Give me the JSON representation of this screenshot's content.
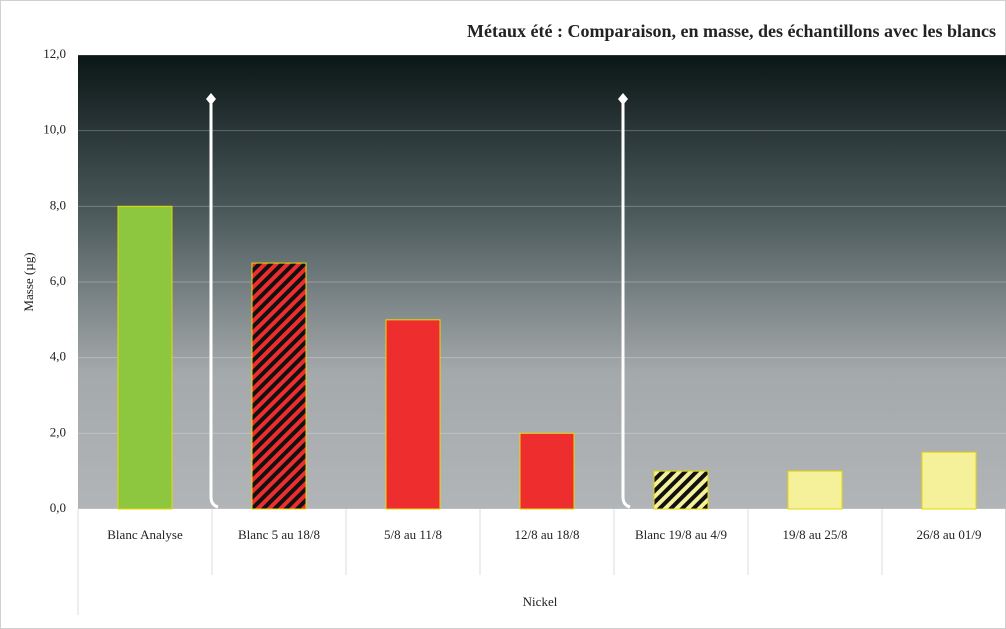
{
  "chart_data": {
    "type": "bar",
    "title": "Métaux été : Comparaison, en masse, des échantillons avec les blancs",
    "y_label": "Masse (µg)",
    "x_label": "Nickel",
    "categories": [
      "Blanc Analyse",
      "Blanc 5 au 18/8",
      "5/8 au 11/8",
      "12/8 au 18/8",
      "Blanc 19/8 au 4/9",
      "19/8 au 25/8",
      "26/8 au 01/9"
    ],
    "values": [
      8,
      6.5,
      5,
      2,
      1,
      1,
      1.5
    ],
    "colors": [
      "#8dc63f",
      "#ee2e2e",
      "#ee2e2e",
      "#ee2e2e",
      "#f5f09a",
      "#f5f09a",
      "#f5f09a"
    ],
    "hatched": [
      false,
      true,
      false,
      false,
      true,
      false,
      false
    ],
    "ylim": [
      0,
      12
    ],
    "yticks": [
      {
        "value": 0,
        "label": "0,0"
      },
      {
        "value": 2,
        "label": "2,0"
      },
      {
        "value": 4,
        "label": "4,0"
      },
      {
        "value": 6,
        "label": "6,0"
      },
      {
        "value": 8,
        "label": "8,0"
      },
      {
        "value": 10,
        "label": "10,0"
      },
      {
        "value": 12,
        "label": "12,0"
      }
    ],
    "grid": true
  }
}
